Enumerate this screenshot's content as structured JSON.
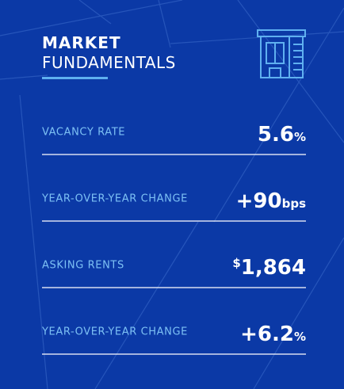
{
  "header": {
    "title_bold": "MARKET",
    "title_light": "FUNDAMENTALS"
  },
  "rows": [
    {
      "label": "VACANCY RATE",
      "prefix": null,
      "value": "5.6",
      "unit": "%"
    },
    {
      "label": "YEAR-OVER-YEAR CHANGE",
      "prefix": null,
      "value": "+90",
      "unit": "bps"
    },
    {
      "label": "ASKING RENTS",
      "prefix": "$",
      "value": "1,864",
      "unit": null
    },
    {
      "label": "YEAR-OVER-YEAR CHANGE",
      "prefix": null,
      "value": "+6.2",
      "unit": "%"
    }
  ]
}
